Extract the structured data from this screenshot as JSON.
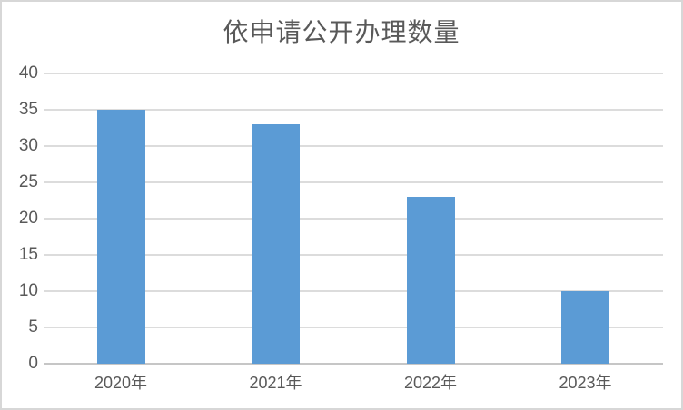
{
  "chart_data": {
    "type": "bar",
    "title": "依申请公开办理数量",
    "categories": [
      "2020年",
      "2021年",
      "2022年",
      "2023年"
    ],
    "values": [
      35,
      33,
      23,
      10
    ],
    "yticks": [
      0,
      5,
      10,
      15,
      20,
      25,
      30,
      35,
      40
    ],
    "ylim": [
      0,
      40
    ],
    "xlabel": "",
    "ylabel": "",
    "grid": true,
    "legend_position": "none",
    "colors": {
      "bar": "#5b9bd5",
      "gridline": "#dcdcdc",
      "axis_line": "#c6c6c6",
      "text": "#595959",
      "frame_border": "#d7d7d7",
      "background": "#ffffff"
    }
  }
}
